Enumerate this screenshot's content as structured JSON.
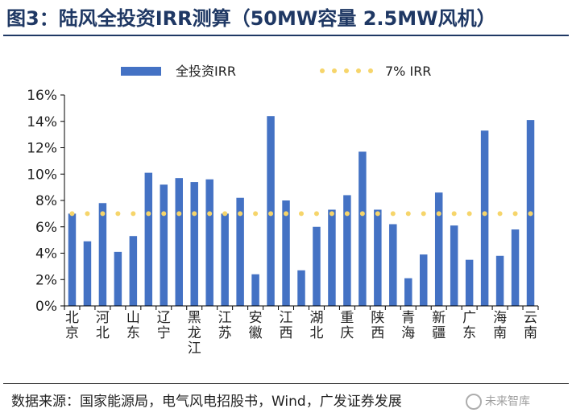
{
  "figure": {
    "title": "图3：陆风全投资IRR测算（50MW容量 2.5MW风机）",
    "source": "数据来源：国家能源局，电气风电招股书，Wind，广发证券发展",
    "watermark": "未来智库"
  },
  "colors": {
    "bar": "#4472c4",
    "reference_line": "#f6d56b",
    "title": "#1f3864",
    "axis": "#000000"
  },
  "chart_data": {
    "type": "bar",
    "title": "",
    "xlabel": "",
    "ylabel": "",
    "ylim": [
      0,
      16
    ],
    "yticks": [
      "0%",
      "2%",
      "4%",
      "6%",
      "8%",
      "10%",
      "12%",
      "14%",
      "16%"
    ],
    "grid": false,
    "legend_position": "top",
    "categories": [
      "北京",
      "",
      "河北",
      "",
      "山东",
      "",
      "辽宁",
      "",
      "黑龙江",
      "",
      "江苏",
      "",
      "安徽",
      "",
      "江西",
      "",
      "湖北",
      "",
      "重庆",
      "",
      "陕西",
      "",
      "青海",
      "",
      "新疆",
      "",
      "广东",
      "",
      "海南",
      "",
      "云南"
    ],
    "series": [
      {
        "name": "全投资IRR",
        "type": "bar",
        "values": [
          7.0,
          4.9,
          7.8,
          4.1,
          5.3,
          10.1,
          9.2,
          9.7,
          9.4,
          9.6,
          7.0,
          8.2,
          2.4,
          14.4,
          8.0,
          2.7,
          6.0,
          7.3,
          8.4,
          11.7,
          7.3,
          6.2,
          2.1,
          3.9,
          8.6,
          6.1,
          3.5,
          13.3,
          3.8,
          5.8,
          14.1
        ]
      },
      {
        "name": "7% IRR",
        "type": "line",
        "value": 7.0
      }
    ]
  }
}
